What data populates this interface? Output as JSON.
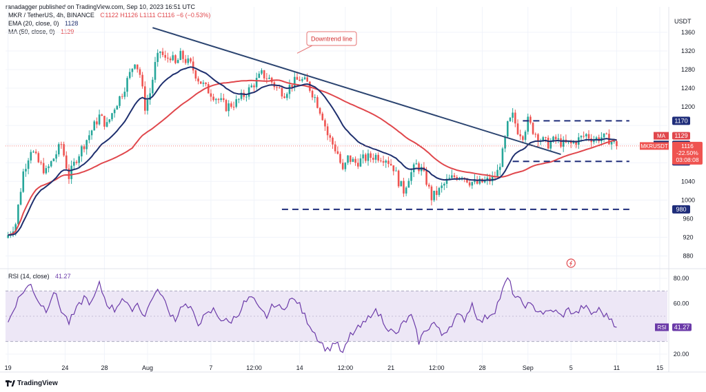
{
  "header": {
    "publisher": "ranadagger published on TradingView.com, Sep 10, 2023 16:51 UTC",
    "symbol": "MKR / TetherUS, 4h, BINANCE",
    "ohlc": "O1122 H1126 L1111 C1116 −6 (−0.53%)",
    "ema_label": "EMA (20, close, 0)",
    "ema_value": "1128",
    "ma_label": "MA (50, close, 0)",
    "ma_value": "1129",
    "currency": "USDT"
  },
  "rsi_header": {
    "label": "RSI (14, close)",
    "value": "41.27"
  },
  "colors": {
    "candle_up": "#26a69a",
    "candle_down": "#ef5350",
    "ema": "#1e2f6e",
    "ma": "#e0474c",
    "trendline": "#2b4470",
    "levels": "#1f2d7a",
    "rsi_line": "#6b3aa8",
    "rsi_band": "#ede7f6",
    "annotation_border": "#e57373",
    "annotation_text": "#d32f2f"
  },
  "chart_data": {
    "type": "candlestick",
    "symbol": "MKR / TetherUS",
    "interval": "4h",
    "y_ticks": [
      880,
      920,
      960,
      1000,
      1040,
      1080,
      1120,
      1160,
      1200,
      1240,
      1280,
      1320,
      1360
    ],
    "y_ticks_shown": [
      "880",
      "920",
      "960",
      "1000",
      "1040",
      "1200",
      "1240",
      "1280",
      "1320",
      "1360"
    ],
    "ylim": [
      860,
      1385
    ],
    "x_ticks": [
      "19",
      "24",
      "28",
      "Aug",
      "7",
      "12:00",
      "14",
      "12:00",
      "21",
      "12:00",
      "28",
      "Sep",
      "5",
      "11",
      "15"
    ],
    "x_tick_pos": [
      0,
      22.5,
      38,
      55,
      80,
      97,
      115,
      133,
      151,
      169,
      187,
      205,
      222,
      240,
      257
    ],
    "xlim": [
      -1,
      260
    ],
    "anchors": [
      [
        0,
        925
      ],
      [
        3,
        950
      ],
      [
        6,
        1060
      ],
      [
        9,
        1110
      ],
      [
        12,
        1080
      ],
      [
        15,
        1060
      ],
      [
        18,
        1090
      ],
      [
        21,
        1120
      ],
      [
        24,
        1050
      ],
      [
        27,
        1090
      ],
      [
        30,
        1120
      ],
      [
        33,
        1150
      ],
      [
        36,
        1180
      ],
      [
        39,
        1160
      ],
      [
        42,
        1200
      ],
      [
        45,
        1230
      ],
      [
        48,
        1270
      ],
      [
        50,
        1300
      ],
      [
        52,
        1270
      ],
      [
        54,
        1200
      ],
      [
        56,
        1230
      ],
      [
        58,
        1290
      ],
      [
        60,
        1320
      ],
      [
        62,
        1300
      ],
      [
        64,
        1310
      ],
      [
        66,
        1290
      ],
      [
        68,
        1310
      ],
      [
        70,
        1300
      ],
      [
        72,
        1290
      ],
      [
        75,
        1260
      ],
      [
        78,
        1240
      ],
      [
        82,
        1220
      ],
      [
        86,
        1200
      ],
      [
        90,
        1210
      ],
      [
        94,
        1230
      ],
      [
        97,
        1250
      ],
      [
        100,
        1270
      ],
      [
        103,
        1260
      ],
      [
        106,
        1240
      ],
      [
        109,
        1230
      ],
      [
        112,
        1250
      ],
      [
        115,
        1260
      ],
      [
        118,
        1250
      ],
      [
        121,
        1220
      ],
      [
        124,
        1180
      ],
      [
        126,
        1140
      ],
      [
        128,
        1120
      ],
      [
        130,
        1100
      ],
      [
        132,
        1060
      ],
      [
        134,
        1090
      ],
      [
        137,
        1080
      ],
      [
        141,
        1090
      ],
      [
        145,
        1095
      ],
      [
        149,
        1090
      ],
      [
        152,
        1070
      ],
      [
        154,
        1040
      ],
      [
        156,
        1020
      ],
      [
        158,
        1050
      ],
      [
        161,
        1075
      ],
      [
        163,
        1065
      ],
      [
        165,
        1040
      ],
      [
        167,
        1005
      ],
      [
        170,
        1020
      ],
      [
        173,
        1040
      ],
      [
        176,
        1050
      ],
      [
        179,
        1055
      ],
      [
        182,
        1040
      ],
      [
        185,
        1035
      ],
      [
        188,
        1040
      ],
      [
        191,
        1045
      ],
      [
        193,
        1060
      ],
      [
        195,
        1100
      ],
      [
        197,
        1160
      ],
      [
        199,
        1180
      ],
      [
        201,
        1150
      ],
      [
        203,
        1140
      ],
      [
        205,
        1170
      ],
      [
        207,
        1150
      ],
      [
        210,
        1130
      ],
      [
        213,
        1120
      ],
      [
        216,
        1130
      ],
      [
        219,
        1120
      ],
      [
        222,
        1120
      ],
      [
        225,
        1130
      ],
      [
        228,
        1140
      ],
      [
        231,
        1130
      ],
      [
        234,
        1135
      ],
      [
        237,
        1130
      ],
      [
        240,
        1116
      ]
    ],
    "ema": {
      "name": "EMA",
      "value": 1128
    },
    "ma": {
      "name": "MA",
      "value": 1129
    },
    "last_price": {
      "value": 1116,
      "label": "MKRUSDT",
      "change": "-22.50%",
      "countdown": "03:08:08"
    },
    "levels": [
      {
        "value": 1170,
        "label": "1170",
        "x_from": 203,
        "x_to": 245
      },
      {
        "value": 1083,
        "label": "1083",
        "x_from": 199,
        "x_to": 245
      },
      {
        "value": 980,
        "label": "980",
        "x_from": 108,
        "x_to": 245
      }
    ],
    "trendline": {
      "x1": 57,
      "y1": 1370,
      "x2": 218,
      "y2": 1098
    },
    "annotation": {
      "text": "Downtrend line",
      "anchor_x": 114,
      "anchor_y": 1315
    },
    "rsi": {
      "ylim": [
        14,
        86
      ],
      "ticks": [
        20,
        40,
        60,
        80
      ],
      "ticks_shown": [
        "20.00",
        "60.00",
        "80.00"
      ],
      "band": [
        30,
        70
      ],
      "midline": 50,
      "value": 41.27,
      "anchors": [
        [
          0,
          45
        ],
        [
          3,
          60
        ],
        [
          6,
          70
        ],
        [
          9,
          75
        ],
        [
          12,
          62
        ],
        [
          15,
          55
        ],
        [
          18,
          70
        ],
        [
          21,
          55
        ],
        [
          24,
          45
        ],
        [
          27,
          55
        ],
        [
          30,
          65
        ],
        [
          33,
          60
        ],
        [
          36,
          75
        ],
        [
          39,
          60
        ],
        [
          42,
          55
        ],
        [
          45,
          65
        ],
        [
          48,
          55
        ],
        [
          51,
          60
        ],
        [
          54,
          50
        ],
        [
          57,
          66
        ],
        [
          60,
          70
        ],
        [
          63,
          55
        ],
        [
          66,
          48
        ],
        [
          69,
          60
        ],
        [
          72,
          55
        ],
        [
          75,
          45
        ],
        [
          78,
          50
        ],
        [
          81,
          55
        ],
        [
          84,
          48
        ],
        [
          87,
          45
        ],
        [
          90,
          50
        ],
        [
          93,
          60
        ],
        [
          96,
          65
        ],
        [
          99,
          55
        ],
        [
          102,
          50
        ],
        [
          105,
          60
        ],
        [
          108,
          55
        ],
        [
          111,
          63
        ],
        [
          114,
          62
        ],
        [
          117,
          50
        ],
        [
          120,
          40
        ],
        [
          123,
          30
        ],
        [
          126,
          23
        ],
        [
          129,
          30
        ],
        [
          132,
          20
        ],
        [
          135,
          35
        ],
        [
          138,
          40
        ],
        [
          141,
          45
        ],
        [
          144,
          55
        ],
        [
          147,
          50
        ],
        [
          150,
          40
        ],
        [
          153,
          35
        ],
        [
          156,
          45
        ],
        [
          159,
          50
        ],
        [
          162,
          30
        ],
        [
          165,
          40
        ],
        [
          168,
          45
        ],
        [
          171,
          35
        ],
        [
          174,
          42
        ],
        [
          177,
          50
        ],
        [
          180,
          48
        ],
        [
          183,
          60
        ],
        [
          186,
          45
        ],
        [
          189,
          50
        ],
        [
          192,
          55
        ],
        [
          195,
          70
        ],
        [
          197,
          80
        ],
        [
          200,
          65
        ],
        [
          203,
          60
        ],
        [
          206,
          58
        ],
        [
          209,
          55
        ],
        [
          212,
          52
        ],
        [
          215,
          55
        ],
        [
          218,
          50
        ],
        [
          221,
          55
        ],
        [
          224,
          52
        ],
        [
          227,
          58
        ],
        [
          230,
          52
        ],
        [
          233,
          55
        ],
        [
          236,
          50
        ],
        [
          238,
          48
        ],
        [
          240,
          41.27
        ]
      ]
    }
  }
}
